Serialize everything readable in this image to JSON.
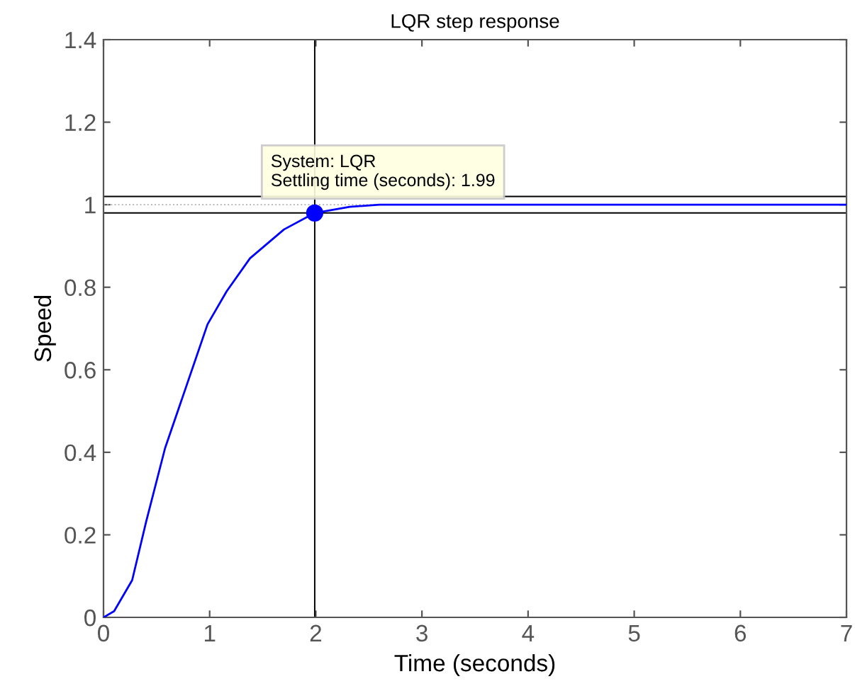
{
  "chart_data": {
    "type": "line",
    "title": "LQR step response",
    "xlabel": "Time (seconds)",
    "ylabel": "Speed",
    "series": [
      {
        "color": "#0000ff",
        "x": [
          0,
          0.1,
          0.27,
          0.4,
          0.58,
          0.76,
          0.98,
          1.16,
          1.38,
          1.7,
          1.99,
          2.32,
          2.6,
          3,
          4,
          5,
          6,
          7
        ],
        "values": [
          0,
          0.015,
          0.09,
          0.23,
          0.41,
          0.545,
          0.71,
          0.79,
          0.87,
          0.94,
          0.98,
          0.995,
          1,
          1,
          1,
          1,
          1,
          1
        ]
      },
      {
        "type": "scatter",
        "color": "#0000ff",
        "marker": "circle",
        "x": [
          1.99
        ],
        "values": [
          0.98
        ]
      }
    ],
    "ref_lines": [
      {
        "axis": "y",
        "value": 0.98,
        "color": "#000000"
      },
      {
        "axis": "y",
        "value": 1.02,
        "color": "#000000"
      },
      {
        "axis": "y",
        "value": 1,
        "color": "#b0b0b0",
        "line_style": "dotted"
      },
      {
        "axis": "x",
        "value": 1.99,
        "color": "#000000"
      }
    ],
    "annotations": [
      "System: LQR\nSettling time (seconds): 1.99"
    ],
    "xlim": [
      0,
      7
    ],
    "xticks": [
      0,
      1,
      2,
      3,
      4,
      5,
      6,
      7
    ],
    "ylim": [
      0,
      1.4
    ],
    "yticks": [
      0,
      0.2,
      0.4,
      0.6,
      0.8,
      1,
      1.2,
      1.4
    ],
    "grid": false,
    "legend": false
  }
}
